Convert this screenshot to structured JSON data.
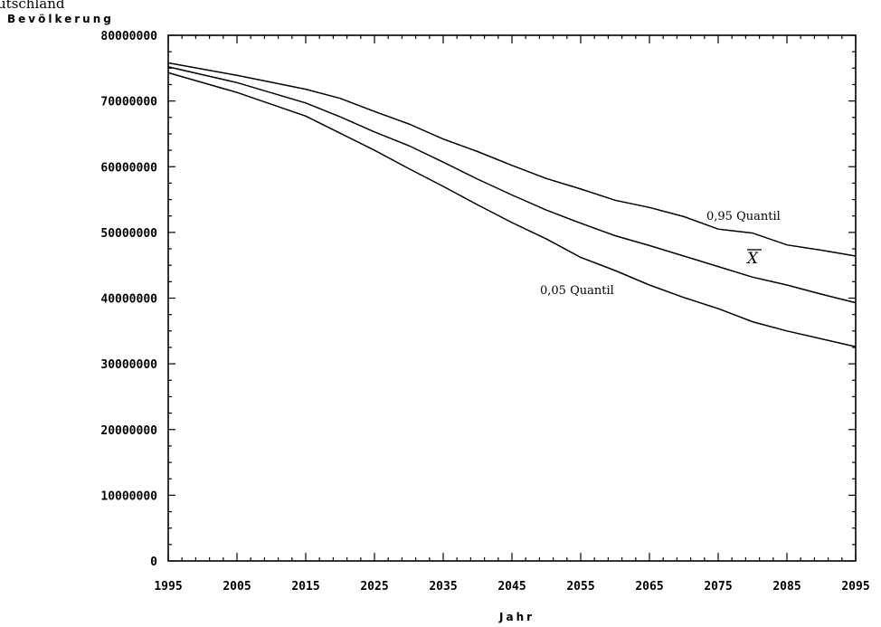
{
  "header_fragment": "utschland",
  "chart_data": {
    "type": "line",
    "xlabel": "Jahr",
    "ylabel": "Bevölkerung",
    "xlim": [
      1995,
      2095
    ],
    "ylim": [
      0,
      80000000
    ],
    "x_ticks": [
      1995,
      2005,
      2015,
      2025,
      2035,
      2045,
      2055,
      2065,
      2075,
      2085,
      2095
    ],
    "y_ticks": [
      0,
      10000000,
      20000000,
      30000000,
      40000000,
      50000000,
      60000000,
      70000000,
      80000000
    ],
    "y_tick_labels": [
      "0",
      "10000000",
      "20000000",
      "30000000",
      "40000000",
      "50000000",
      "60000000",
      "70000000",
      "80000000"
    ],
    "grid": false,
    "x": [
      1995,
      2005,
      2015,
      2020,
      2025,
      2030,
      2035,
      2040,
      2045,
      2050,
      2055,
      2060,
      2065,
      2070,
      2075,
      2080,
      2085,
      2090,
      2095
    ],
    "series": [
      {
        "name": "0,95 Quantil",
        "values": [
          75800000,
          73900000,
          71800000,
          70400000,
          68400000,
          66500000,
          64200000,
          62300000,
          60200000,
          58200000,
          56600000,
          54900000,
          53800000,
          52400000,
          50500000,
          49900000,
          48100000,
          47300000,
          46400000
        ]
      },
      {
        "name": "X̄",
        "values": [
          75200000,
          72800000,
          69700000,
          67600000,
          65300000,
          63200000,
          60700000,
          58100000,
          55700000,
          53400000,
          51400000,
          49500000,
          48000000,
          46400000,
          44800000,
          43200000,
          42000000,
          40600000,
          39300000
        ]
      },
      {
        "name": "0,05 Quantil",
        "values": [
          74300000,
          71300000,
          67700000,
          65100000,
          62500000,
          59700000,
          57000000,
          54200000,
          51500000,
          49000000,
          46200000,
          44200000,
          42000000,
          40100000,
          38400000,
          36400000,
          35000000,
          33800000,
          32600000
        ]
      }
    ],
    "annotations": [
      {
        "text": "0,95 Quantil",
        "series": "0,95 Quantil"
      },
      {
        "text": "X",
        "series": "X̄"
      },
      {
        "text": "0,05 Quantil",
        "series": "0,05 Quantil"
      }
    ]
  }
}
